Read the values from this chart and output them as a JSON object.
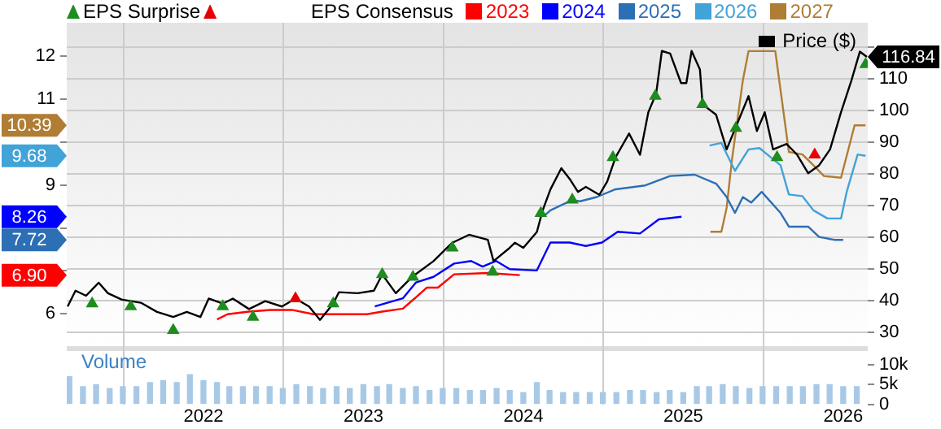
{
  "chart_data": {
    "type": "line",
    "legend": "top",
    "annotations": [
      "10.39",
      "9.68",
      "8.26",
      "7.72",
      "6.90"
    ],
    "legend_title": "EPS Consensus",
    "y3label": "Volume",
    "grid": true,
    "xlim": [
      "2021-02-23",
      "2026-02-26"
    ],
    "xticks": [
      "2022",
      "2023",
      "2024",
      "2025",
      "2026"
    ],
    "ylim": [
      5.23,
      12.78
    ],
    "yticks": [
      6,
      {
        "value": 7,
        "label": null
      },
      {
        "value": 8,
        "label": null
      },
      9,
      {
        "value": 10,
        "label": null
      },
      11,
      12
    ],
    "y2lim": [
      25.5,
      127.6
    ],
    "y2ticks": [
      30,
      40,
      50,
      60,
      70,
      80,
      90,
      100,
      110,
      {
        "value": 120,
        "label": null
      }
    ],
    "y3lim": [
      0,
      14600
    ],
    "y3ticks": [
      0,
      {
        "value": 5000,
        "label": "5k"
      },
      {
        "value": 10000,
        "label": "10k"
      }
    ],
    "series": [
      {
        "type": "bar",
        "axis": "y3",
        "color": "#a8c9e6",
        "x": [
          "2021-03",
          "2021-04",
          "2021-05",
          "2021-06",
          "2021-07",
          "2021-08",
          "2021-09",
          "2021-10",
          "2021-11",
          "2021-12",
          "2022-01",
          "2022-02",
          "2022-03",
          "2022-04",
          "2022-05",
          "2022-06",
          "2022-07",
          "2022-08",
          "2022-09",
          "2022-10",
          "2022-11",
          "2022-12",
          "2023-01",
          "2023-02",
          "2023-03",
          "2023-04",
          "2023-05",
          "2023-06",
          "2023-07",
          "2023-08",
          "2023-09",
          "2023-10",
          "2023-11",
          "2023-12",
          "2024-01",
          "2024-02",
          "2024-03",
          "2024-04",
          "2024-05",
          "2024-06",
          "2024-07",
          "2024-08",
          "2024-09",
          "2024-10",
          "2024-11",
          "2024-12",
          "2025-01",
          "2025-02",
          "2025-03",
          "2025-04",
          "2025-05",
          "2025-06",
          "2025-07",
          "2025-08",
          "2025-09",
          "2025-10",
          "2025-11",
          "2025-12",
          "2026-01",
          "2026-02"
        ],
        "values": [
          7000,
          4500,
          5000,
          4000,
          4500,
          4500,
          5500,
          6000,
          5500,
          7500,
          6000,
          5500,
          4500,
          4500,
          4500,
          4500,
          4000,
          5000,
          4500,
          4000,
          4500,
          4000,
          5000,
          4500,
          5000,
          4000,
          4500,
          3500,
          4000,
          4000,
          3500,
          3500,
          4000,
          3500,
          3000,
          5500,
          3500,
          3000,
          3000,
          3000,
          3000,
          3000,
          3500,
          3500,
          3000,
          3500,
          3000,
          4500,
          4500,
          5000,
          4500,
          4000,
          4500,
          4500,
          4500,
          4500,
          5000,
          5000,
          4500,
          4500
        ]
      },
      {
        "name": "2023",
        "axis": "y",
        "color": "#ff0000",
        "marker": "none",
        "x": [
          "2022-02-01",
          "2022-02-25",
          "2022-04-15",
          "2022-06-03",
          "2022-07-22",
          "2022-09-09",
          "2022-10-28",
          "2023-01-09",
          "2023-02-13",
          "2023-04-01",
          "2023-04-26",
          "2023-05-26",
          "2023-06-20",
          "2023-07-27",
          "2023-10-12",
          "2023-12-24"
        ],
        "values": [
          5.87,
          5.99,
          6.05,
          6.09,
          6.09,
          5.99,
          5.99,
          5.99,
          6.05,
          6.12,
          6.34,
          6.61,
          6.61,
          6.92,
          6.95,
          6.9
        ]
      },
      {
        "name": "2024",
        "axis": "y",
        "color": "#0000ff",
        "marker": "none",
        "x": [
          "2023-01-27",
          "2023-04-01",
          "2023-05-01",
          "2023-06-10",
          "2023-07-27",
          "2023-09-04",
          "2023-09-30",
          "2023-10-31",
          "2023-12-01",
          "2024-02-01",
          "2024-03-03",
          "2024-04-16",
          "2024-05-23",
          "2024-06-29",
          "2024-08-04",
          "2024-09-24",
          "2024-11-06",
          "2024-12-28"
        ],
        "values": [
          6.17,
          6.36,
          6.73,
          6.86,
          7.17,
          7.23,
          7.1,
          7.23,
          7.04,
          7.01,
          7.66,
          7.66,
          7.58,
          7.66,
          7.91,
          7.87,
          8.2,
          8.26
        ]
      },
      {
        "name": "2025",
        "axis": "y",
        "color": "#2c6fb5",
        "marker": "none",
        "x": [
          "2024-02-20",
          "2024-03-03",
          "2024-04-22",
          "2024-05-10",
          "2024-06-17",
          "2024-07-30",
          "2024-10-06",
          "2024-12-02",
          "2025-01-27",
          "2025-03-17",
          "2025-04-10",
          "2025-04-29",
          "2025-05-17",
          "2025-06-05",
          "2025-06-29",
          "2025-08-11",
          "2025-08-30",
          "2025-10-13",
          "2025-11-07",
          "2025-12-14",
          "2026-01-01"
        ],
        "values": [
          8.3,
          8.41,
          8.65,
          8.62,
          8.72,
          8.9,
          8.99,
          9.21,
          9.24,
          9.03,
          8.72,
          8.35,
          8.72,
          8.59,
          8.84,
          8.35,
          8.03,
          8.03,
          7.79,
          7.72,
          7.72
        ]
      },
      {
        "name": "2026",
        "axis": "y",
        "color": "#41a3d8",
        "marker": "none",
        "x": [
          "2025-03-02",
          "2025-03-29",
          "2025-04-29",
          "2025-05-30",
          "2025-06-24",
          "2025-07-19",
          "2025-08-11",
          "2025-08-30",
          "2025-09-30",
          "2025-10-25",
          "2025-11-26",
          "2025-12-27",
          "2026-01-09",
          "2026-02-03",
          "2026-02-21"
        ],
        "values": [
          9.92,
          9.98,
          9.33,
          9.83,
          9.86,
          9.65,
          9.46,
          8.78,
          8.74,
          8.41,
          8.22,
          8.22,
          8.84,
          9.71,
          9.68
        ]
      },
      {
        "name": "2027",
        "axis": "y",
        "color": "#b07d35",
        "marker": "none",
        "x": [
          "2025-03-04",
          "2025-03-29",
          "2025-04-10",
          "2025-04-22",
          "2025-05-17",
          "2025-05-30",
          "2025-07-30",
          "2025-08-30",
          "2025-09-30",
          "2025-10-25",
          "2025-11-18",
          "2025-12-27",
          "2026-01-27",
          "2026-02-21"
        ],
        "values": [
          7.91,
          7.91,
          8.47,
          9.58,
          11.44,
          12.12,
          12.12,
          9.77,
          9.71,
          9.46,
          9.21,
          9.17,
          10.39,
          10.39
        ]
      },
      {
        "name": "Price ($)",
        "axis": "y2",
        "color": "#000000",
        "marker": "none",
        "x": [
          "2021-02-25",
          "2021-03-15",
          "2021-04-08",
          "2021-05-07",
          "2021-05-28",
          "2021-06-28",
          "2021-08-11",
          "2021-09-17",
          "2021-10-24",
          "2021-11-24",
          "2021-12-25",
          "2022-01-13",
          "2022-02-14",
          "2022-03-09",
          "2022-04-15",
          "2022-05-22",
          "2022-06-29",
          "2022-07-30",
          "2022-08-30",
          "2022-09-24",
          "2022-10-24",
          "2022-11-06",
          "2022-12-19",
          "2023-01-25",
          "2023-02-13",
          "2023-03-16",
          "2023-04-22",
          "2023-06-10",
          "2023-07-23",
          "2023-08-30",
          "2023-10-12",
          "2023-10-25",
          "2023-12-01",
          "2023-12-13",
          "2024-01-01",
          "2024-02-01",
          "2024-02-14",
          "2024-03-03",
          "2024-03-28",
          "2024-04-16",
          "2024-05-05",
          "2024-05-23",
          "2024-06-23",
          "2024-07-11",
          "2024-07-30",
          "2024-08-30",
          "2024-09-24",
          "2024-10-13",
          "2024-10-31",
          "2024-11-13",
          "2024-12-02",
          "2024-12-27",
          "2025-01-08",
          "2025-01-20",
          "2025-02-08",
          "2025-02-14",
          "2025-03-17",
          "2025-04-10",
          "2025-05-05",
          "2025-05-30",
          "2025-06-18",
          "2025-07-06",
          "2025-07-25",
          "2025-08-25",
          "2025-09-18",
          "2025-10-13",
          "2025-11-07",
          "2025-12-02",
          "2025-12-27",
          "2026-01-20",
          "2026-02-08",
          "2026-02-24"
        ],
        "values": [
          38.2,
          43.2,
          41.6,
          45.7,
          42.4,
          40.4,
          39.4,
          36.5,
          34.9,
          36.5,
          34.9,
          40.7,
          39.1,
          40.7,
          37.4,
          39.9,
          38.2,
          40.7,
          38.2,
          34.0,
          39.1,
          42.7,
          42.4,
          43.2,
          48.3,
          42.4,
          47.5,
          52.5,
          58.3,
          60.8,
          59.2,
          52.5,
          56.7,
          58.3,
          56.7,
          61.7,
          68.4,
          75.1,
          81.8,
          78.4,
          74.3,
          75.9,
          73.4,
          77.6,
          85.2,
          92.7,
          86.0,
          99.4,
          105.3,
          118.7,
          117.9,
          108.6,
          108.6,
          118.7,
          112.9,
          101.9,
          98.6,
          87.7,
          96.1,
          104.5,
          93.5,
          99.4,
          87.7,
          89.4,
          86.0,
          80.2,
          82.7,
          87.7,
          99.4,
          109.5,
          118.5,
          116.84
        ],
        "value_labels": [
          null,
          null,
          null,
          null,
          null,
          null,
          null,
          null,
          null,
          null,
          null,
          null,
          null,
          null,
          null,
          null,
          null,
          null,
          null,
          null,
          null,
          null,
          null,
          null,
          null,
          null,
          null,
          null,
          null,
          null,
          null,
          null,
          null,
          null,
          null,
          null,
          null,
          null,
          null,
          null,
          null,
          null,
          null,
          null,
          null,
          null,
          null,
          null,
          null,
          null,
          null,
          null,
          null,
          null,
          null,
          null,
          null,
          null,
          null,
          null,
          null,
          null,
          null,
          null,
          null,
          null,
          null,
          null,
          null,
          null,
          null,
          "116.84"
        ]
      },
      {
        "name": "EPS Surprise",
        "type": "scatter",
        "axis": "y2",
        "color": "#1e8c1e",
        "marker": "triangle",
        "x": [
          "2021-04-22",
          "2021-07-19",
          "2021-10-24",
          "2022-02-14",
          "2022-04-24",
          "2022-10-24",
          "2023-02-13",
          "2023-04-24",
          "2023-07-23",
          "2023-10-23",
          "2024-02-10",
          "2024-04-22",
          "2024-07-24",
          "2024-10-29",
          "2025-02-14",
          "2025-05-01",
          "2025-08-03",
          "2026-02-21"
        ],
        "values": [
          39.1,
          38.2,
          30.7,
          38.2,
          34.9,
          39.1,
          48.3,
          47.5,
          56.7,
          49.1,
          67.6,
          71.8,
          85.2,
          104.5,
          101.9,
          94.4,
          85.2,
          114.5
        ]
      },
      {
        "type": "scatter",
        "axis": "y2",
        "color": "#e60000",
        "marker": "triangle",
        "x": [
          "2022-07-30",
          "2025-10-28"
        ],
        "values": [
          40.7,
          86.0
        ]
      }
    ]
  }
}
